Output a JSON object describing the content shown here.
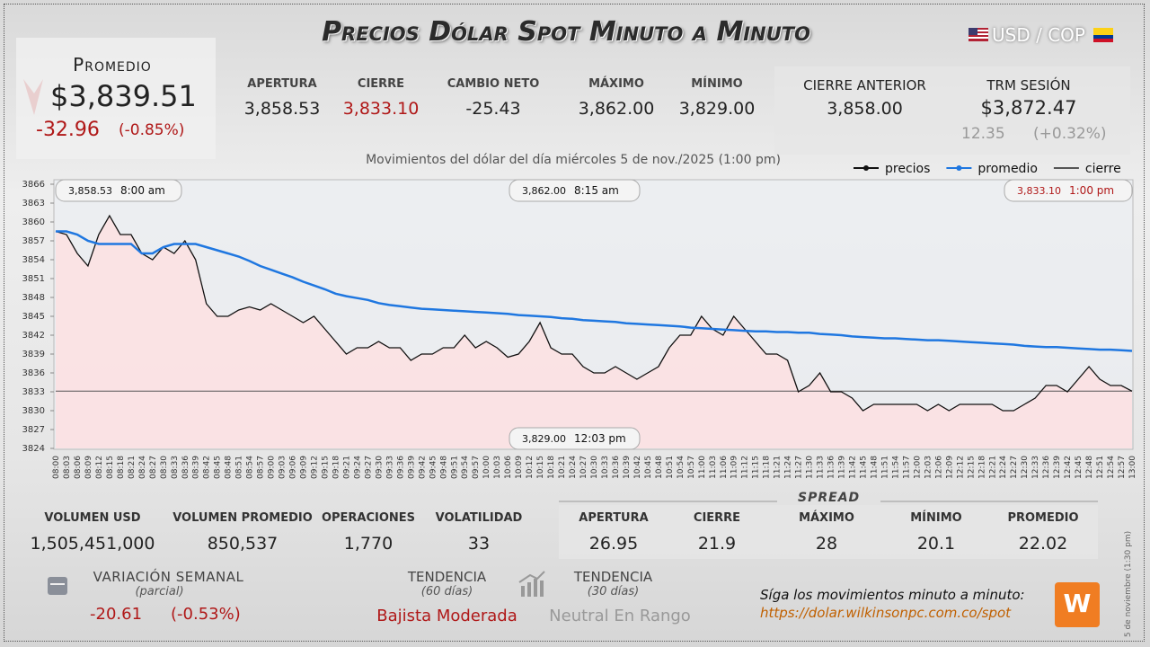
{
  "header": {
    "title": "Precios Dólar Spot Minuto a Minuto",
    "pair": "USD / COP"
  },
  "promedio": {
    "label": "Promedio",
    "value": "$3,839.51",
    "change": "-32.96",
    "change_pct": "(-0.85%)"
  },
  "stats": [
    {
      "label": "APERTURA",
      "value": "3,858.53"
    },
    {
      "label": "CIERRE",
      "value": "3,833.10"
    },
    {
      "label": "CAMBIO NETO",
      "value": "-25.43"
    },
    {
      "label": "MÁXIMO",
      "value": "3,862.00"
    },
    {
      "label": "MÍNIMO",
      "value": "3,829.00"
    }
  ],
  "cierre_anterior": {
    "label": "CIERRE ANTERIOR",
    "value": "3,858.00"
  },
  "trm": {
    "label": "TRM SESIÓN",
    "value": "$3,872.47",
    "change": "12.35",
    "change_pct": "(+0.32%)"
  },
  "volume": [
    {
      "label": "VOLUMEN USD",
      "value": "1,505,451,000"
    },
    {
      "label": "VOLUMEN PROMEDIO",
      "value": "850,537"
    },
    {
      "label": "OPERACIONES",
      "value": "1,770"
    },
    {
      "label": "VOLATILIDAD",
      "value": "33"
    }
  ],
  "spread": {
    "title": "SPREAD",
    "items": [
      {
        "label": "APERTURA",
        "value": "26.95"
      },
      {
        "label": "CIERRE",
        "value": "21.9"
      },
      {
        "label": "MÁXIMO",
        "value": "28"
      },
      {
        "label": "MÍNIMO",
        "value": "20.1"
      },
      {
        "label": "PROMEDIO",
        "value": "22.02"
      }
    ]
  },
  "weekly": {
    "label": "VARIACIÓN SEMANAL",
    "sub": "(parcial)",
    "value": "-20.61",
    "pct": "(-0.53%)"
  },
  "trend60": {
    "label": "TENDENCIA",
    "sub": "(60 días)",
    "value": "Bajista Moderada"
  },
  "trend30": {
    "label": "TENDENCIA",
    "sub": "(30 días)",
    "value": "Neutral En Rango"
  },
  "footer": {
    "text": "Síga los movimientos minuto a minuto:",
    "url": "https://dolar.wilkinsonpc.com.co/spot",
    "side": "5 de noviembre (1:30 pm)"
  },
  "chart_data": {
    "type": "line",
    "subtitle": "Movimientos del dólar del día miércoles 5 de nov./2025 (1:00 pm)",
    "x": [
      "08:00",
      "08:03",
      "08:06",
      "08:09",
      "08:12",
      "08:15",
      "08:18",
      "08:21",
      "08:24",
      "08:27",
      "08:30",
      "08:33",
      "08:36",
      "08:39",
      "08:42",
      "08:45",
      "08:48",
      "08:51",
      "08:54",
      "08:57",
      "09:00",
      "09:03",
      "09:06",
      "09:09",
      "09:12",
      "09:15",
      "09:18",
      "09:21",
      "09:24",
      "09:27",
      "09:30",
      "09:33",
      "09:36",
      "09:39",
      "09:42",
      "09:45",
      "09:48",
      "09:51",
      "09:54",
      "09:57",
      "10:00",
      "10:03",
      "10:06",
      "10:09",
      "10:12",
      "10:15",
      "10:18",
      "10:21",
      "10:24",
      "10:27",
      "10:30",
      "10:33",
      "10:36",
      "10:39",
      "10:42",
      "10:45",
      "10:48",
      "10:51",
      "10:54",
      "10:57",
      "11:00",
      "11:03",
      "11:06",
      "11:09",
      "11:12",
      "11:15",
      "11:18",
      "11:21",
      "11:24",
      "11:27",
      "11:30",
      "11:33",
      "11:36",
      "11:39",
      "11:42",
      "11:45",
      "11:48",
      "11:51",
      "11:54",
      "11:57",
      "12:00",
      "12:03",
      "12:06",
      "12:09",
      "12:12",
      "12:15",
      "12:18",
      "12:21",
      "12:24",
      "12:27",
      "12:30",
      "12:33",
      "12:36",
      "12:39",
      "12:42",
      "12:45",
      "12:48",
      "12:51",
      "12:54",
      "12:57",
      "13:00"
    ],
    "series": [
      {
        "name": "precios",
        "color": "#111111",
        "fill": "#fde0e2",
        "values": [
          3858.5,
          3858,
          3855,
          3853,
          3858,
          3861,
          3858,
          3858,
          3855,
          3854,
          3856,
          3855,
          3857,
          3854,
          3847,
          3845,
          3845,
          3846,
          3846.5,
          3846,
          3847,
          3846,
          3845,
          3844,
          3845,
          3843,
          3841,
          3839,
          3840,
          3840,
          3841,
          3840,
          3840,
          3838,
          3839,
          3839,
          3840,
          3840,
          3842,
          3840,
          3841,
          3840,
          3838.5,
          3839,
          3841,
          3844,
          3840,
          3839,
          3839,
          3837,
          3836,
          3836,
          3837,
          3836,
          3835,
          3836,
          3837,
          3840,
          3842,
          3842,
          3845,
          3843,
          3842,
          3845,
          3843,
          3841,
          3839,
          3839,
          3838,
          3833,
          3834,
          3836,
          3833,
          3833,
          3832,
          3830,
          3831,
          3831,
          3831,
          3831,
          3831,
          3830,
          3831,
          3830,
          3831,
          3831,
          3831,
          3831,
          3830,
          3830,
          3831,
          3832,
          3834,
          3834,
          3833,
          3835,
          3837,
          3835,
          3834,
          3834,
          3833.1
        ]
      },
      {
        "name": "promedio",
        "color": "#1f77e0",
        "values": [
          3858.5,
          3858.5,
          3858,
          3857,
          3856.5,
          3856.5,
          3856.5,
          3856.5,
          3855,
          3855,
          3856,
          3856.5,
          3856.5,
          3856.5,
          3856,
          3855.5,
          3855,
          3854.5,
          3853.8,
          3853,
          3852.4,
          3851.8,
          3851.2,
          3850.5,
          3849.9,
          3849.3,
          3848.6,
          3848.2,
          3847.9,
          3847.6,
          3847.1,
          3846.8,
          3846.6,
          3846.4,
          3846.2,
          3846.1,
          3846,
          3845.9,
          3845.8,
          3845.7,
          3845.6,
          3845.5,
          3845.4,
          3845.2,
          3845.1,
          3845,
          3844.9,
          3844.7,
          3844.6,
          3844.4,
          3844.3,
          3844.2,
          3844.1,
          3843.9,
          3843.8,
          3843.7,
          3843.6,
          3843.5,
          3843.4,
          3843.2,
          3843.1,
          3843,
          3842.9,
          3842.8,
          3842.7,
          3842.6,
          3842.6,
          3842.5,
          3842.5,
          3842.4,
          3842.4,
          3842.2,
          3842.1,
          3842,
          3841.8,
          3841.7,
          3841.6,
          3841.5,
          3841.5,
          3841.4,
          3841.3,
          3841.2,
          3841.2,
          3841.1,
          3841,
          3840.9,
          3840.8,
          3840.7,
          3840.6,
          3840.5,
          3840.3,
          3840.2,
          3840.1,
          3840.1,
          3840,
          3839.9,
          3839.8,
          3839.7,
          3839.7,
          3839.6,
          3839.5
        ]
      }
    ],
    "hlines": [
      {
        "name": "cierre",
        "color": "#555555",
        "value": 3833.1
      }
    ],
    "ylim": [
      3824,
      3866
    ],
    "yticks": [
      3824,
      3827,
      3830,
      3833,
      3836,
      3839,
      3842,
      3845,
      3848,
      3851,
      3854,
      3857,
      3860,
      3863,
      3866
    ],
    "annotations": [
      {
        "text": "3,858.53",
        "time": "8:00 am"
      },
      {
        "text": "3,862.00",
        "time": "8:15 am"
      },
      {
        "text": "3,833.10",
        "time": "1:00 pm"
      },
      {
        "text": "3,829.00",
        "time": "12:03 pm"
      }
    ],
    "legend": "top-right"
  }
}
